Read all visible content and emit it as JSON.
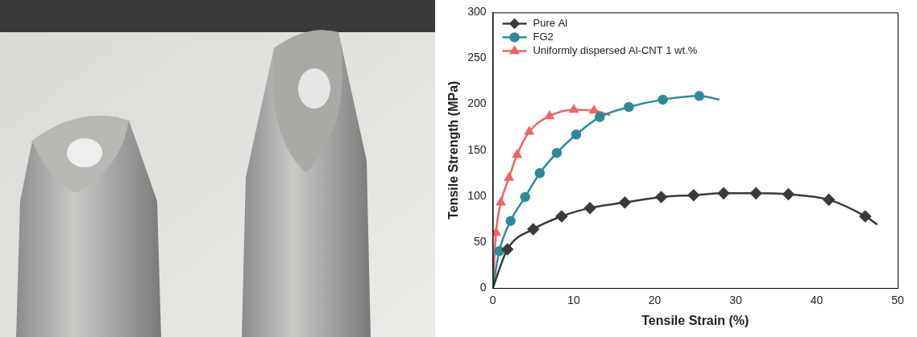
{
  "chart_data": {
    "type": "line",
    "x_label": "Tensile Strain (%)",
    "y_label": "Tensile Strength (MPa)",
    "xlim": [
      0,
      50
    ],
    "xticks": [
      0,
      10,
      20,
      30,
      40,
      50
    ],
    "ylim": [
      0,
      300
    ],
    "yticks": [
      0,
      50,
      100,
      150,
      200,
      250,
      300
    ],
    "grid": false,
    "legend": "upper left",
    "series": [
      {
        "name": "Pure Al",
        "color": "#3a3a3a",
        "marker": "diamond",
        "line_style": "solid",
        "x": [
          0,
          1.8,
          5,
          8.5,
          12,
          16.3,
          20.8,
          24.8,
          28.5,
          32.5,
          36.5,
          41.5,
          46,
          47.5
        ],
        "values": [
          0,
          42,
          64,
          78,
          87,
          93,
          99,
          101,
          103,
          103,
          102,
          96,
          78,
          69
        ]
      },
      {
        "name": "FG2",
        "color": "#2e8a9a",
        "marker": "circle",
        "line_style": "solid",
        "x": [
          0,
          0.8,
          2.2,
          4,
          5.8,
          7.9,
          10.3,
          13.2,
          16.8,
          21,
          25.5,
          28
        ],
        "values": [
          0,
          40,
          73,
          99,
          125,
          147,
          167,
          186,
          197,
          205,
          209,
          205
        ]
      },
      {
        "name": "Uniformly dispersed Al-CNT 1 wt.%",
        "color": "#f06464",
        "marker": "triangle",
        "line_style": "solid",
        "x": [
          0,
          0.4,
          1,
          2,
          3,
          4.5,
          7,
          10,
          12.5,
          14.5
        ],
        "values": [
          0,
          60,
          93,
          120,
          145,
          170,
          187,
          194,
          193,
          188
        ]
      }
    ]
  }
}
